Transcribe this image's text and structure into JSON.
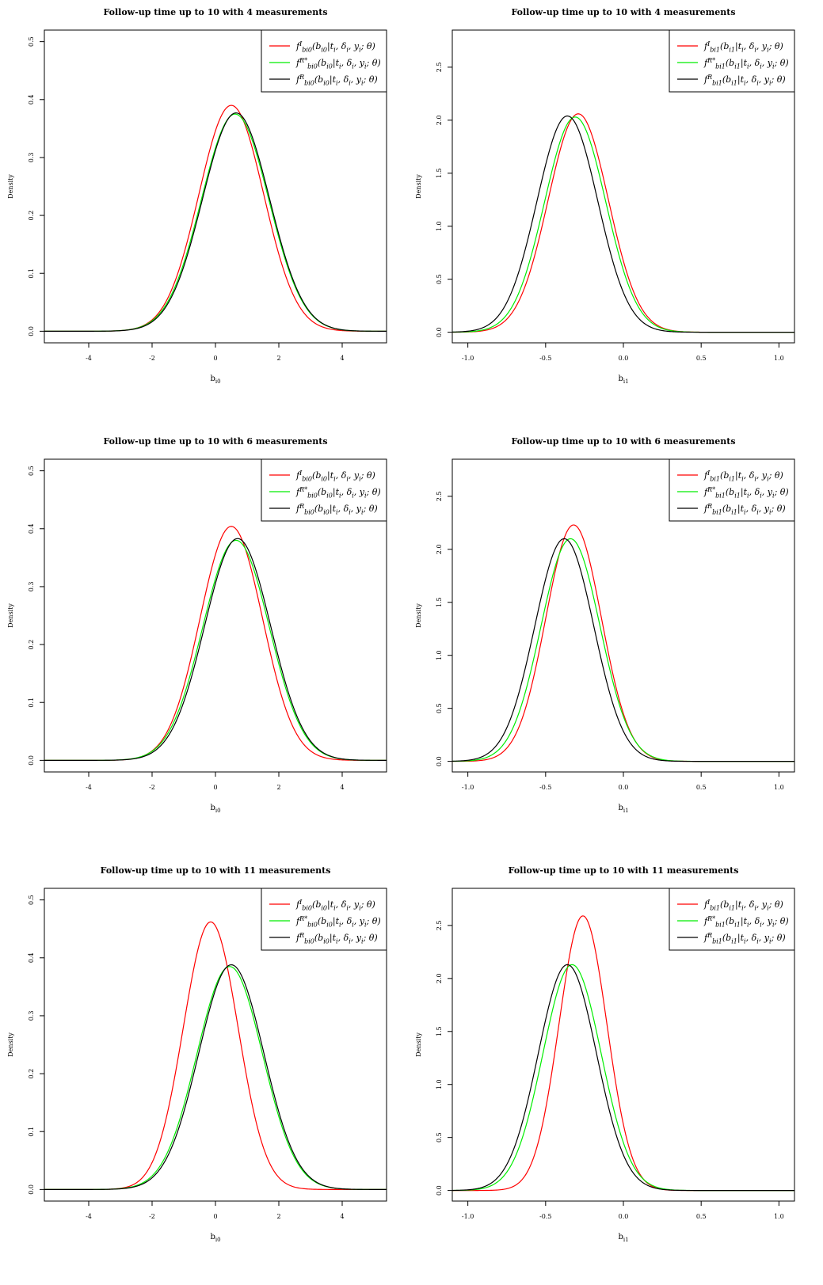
{
  "figure": {
    "ylabel": "Density",
    "legend_labels": [
      "f^I_{b_i0}(b_i0|t_i, δ_i, y_i; θ)",
      "f^R*_{b_i0}(b_i0|t_i, δ_i, y_i; θ)",
      "f^R_{b_i0}(b_i0|t_i, δ_i, y_i; θ)",
      "f^I_{b_i1}(b_i1|t_i, δ_i, y_i; θ)",
      "f^R*_{b_i1}(b_i1|t_i, δ_i, y_i; θ)",
      "f^R_{b_i1}(b_i1|t_i, δ_i, y_i; θ)"
    ]
  },
  "chart_data": [
    {
      "type": "line",
      "title": "Follow-up time up to 10 with 4 measurements",
      "xlabel": "b_i0",
      "ylabel": "Density",
      "xlim": [
        -5.4,
        5.4
      ],
      "ylim": [
        -0.02,
        0.52
      ],
      "xticks": [
        -4,
        -2,
        0,
        2,
        4
      ],
      "yticks": [
        0.0,
        0.1,
        0.2,
        0.3,
        0.4,
        0.5
      ],
      "xtick_labels": [
        "-4",
        "-2",
        "0",
        "2",
        "4"
      ],
      "ytick_labels": [
        "0.0",
        "0.1",
        "0.2",
        "0.3",
        "0.4",
        "0.5"
      ],
      "legend": "top-right",
      "grid": false,
      "series": [
        {
          "label_index": 0,
          "color": "#ff0000",
          "mean": 0.5,
          "peak": 0.39
        },
        {
          "label_index": 1,
          "color": "#00ee00",
          "mean": 0.62,
          "peak": 0.375
        },
        {
          "label_index": 2,
          "color": "#000000",
          "mean": 0.65,
          "peak": 0.377
        }
      ]
    },
    {
      "type": "line",
      "title": "Follow-up time up to 10 with 4 measurements",
      "xlabel": "b_i1",
      "ylabel": "Density",
      "xlim": [
        -1.1,
        1.1
      ],
      "ylim": [
        -0.1,
        2.85
      ],
      "xticks": [
        -1.0,
        -0.5,
        0.0,
        0.5,
        1.0
      ],
      "yticks": [
        0.0,
        0.5,
        1.0,
        1.5,
        2.0,
        2.5
      ],
      "xtick_labels": [
        "-1.0",
        "-0.5",
        "0.0",
        "0.5",
        "1.0"
      ],
      "ytick_labels": [
        "0.0",
        "0.5",
        "1.0",
        "1.5",
        "2.0",
        "2.5"
      ],
      "legend": "top-right",
      "grid": false,
      "series": [
        {
          "label_index": 3,
          "color": "#ff0000",
          "mean": -0.29,
          "peak": 2.06
        },
        {
          "label_index": 4,
          "color": "#00ee00",
          "mean": -0.31,
          "peak": 2.03
        },
        {
          "label_index": 5,
          "color": "#000000",
          "mean": -0.36,
          "peak": 2.04
        }
      ]
    },
    {
      "type": "line",
      "title": "Follow-up time up to 10 with 6 measurements",
      "xlabel": "b_i0",
      "ylabel": "Density",
      "xlim": [
        -5.4,
        5.4
      ],
      "ylim": [
        -0.02,
        0.52
      ],
      "xticks": [
        -4,
        -2,
        0,
        2,
        4
      ],
      "yticks": [
        0.0,
        0.1,
        0.2,
        0.3,
        0.4,
        0.5
      ],
      "xtick_labels": [
        "-4",
        "-2",
        "0",
        "2",
        "4"
      ],
      "ytick_labels": [
        "0.0",
        "0.1",
        "0.2",
        "0.3",
        "0.4",
        "0.5"
      ],
      "legend": "top-right",
      "grid": false,
      "series": [
        {
          "label_index": 0,
          "color": "#ff0000",
          "mean": 0.5,
          "peak": 0.404
        },
        {
          "label_index": 1,
          "color": "#00ee00",
          "mean": 0.65,
          "peak": 0.38
        },
        {
          "label_index": 2,
          "color": "#000000",
          "mean": 0.7,
          "peak": 0.383
        }
      ]
    },
    {
      "type": "line",
      "title": "Follow-up time up to 10 with 6 measurements",
      "xlabel": "b_i1",
      "ylabel": "Density",
      "xlim": [
        -1.1,
        1.1
      ],
      "ylim": [
        -0.1,
        2.85
      ],
      "xticks": [
        -1.0,
        -0.5,
        0.0,
        0.5,
        1.0
      ],
      "yticks": [
        0.0,
        0.5,
        1.0,
        1.5,
        2.0,
        2.5
      ],
      "xtick_labels": [
        "-1.0",
        "-0.5",
        "0.0",
        "0.5",
        "1.0"
      ],
      "ytick_labels": [
        "0.0",
        "0.5",
        "1.0",
        "1.5",
        "2.0",
        "2.5"
      ],
      "legend": "top-right",
      "grid": false,
      "series": [
        {
          "label_index": 3,
          "color": "#ff0000",
          "mean": -0.32,
          "peak": 2.23
        },
        {
          "label_index": 4,
          "color": "#00ee00",
          "mean": -0.34,
          "peak": 2.1
        },
        {
          "label_index": 5,
          "color": "#000000",
          "mean": -0.38,
          "peak": 2.1
        }
      ]
    },
    {
      "type": "line",
      "title": "Follow-up time up to 10 with 11 measurements",
      "xlabel": "b_i0",
      "ylabel": "Density",
      "xlim": [
        -5.4,
        5.4
      ],
      "ylim": [
        -0.02,
        0.52
      ],
      "xticks": [
        -4,
        -2,
        0,
        2,
        4
      ],
      "yticks": [
        0.0,
        0.1,
        0.2,
        0.3,
        0.4,
        0.5
      ],
      "xtick_labels": [
        "-4",
        "-2",
        "0",
        "2",
        "4"
      ],
      "ytick_labels": [
        "0.0",
        "0.1",
        "0.2",
        "0.3",
        "0.4",
        "0.5"
      ],
      "legend": "top-right",
      "grid": false,
      "series": [
        {
          "label_index": 0,
          "color": "#ff0000",
          "mean": -0.15,
          "peak": 0.462
        },
        {
          "label_index": 1,
          "color": "#00ee00",
          "mean": 0.45,
          "peak": 0.385
        },
        {
          "label_index": 2,
          "color": "#000000",
          "mean": 0.5,
          "peak": 0.388
        }
      ]
    },
    {
      "type": "line",
      "title": "Follow-up time up to 10 with 11 measurements",
      "xlabel": "b_i1",
      "ylabel": "Density",
      "xlim": [
        -1.1,
        1.1
      ],
      "ylim": [
        -0.1,
        2.85
      ],
      "xticks": [
        -1.0,
        -0.5,
        0.0,
        0.5,
        1.0
      ],
      "yticks": [
        0.0,
        0.5,
        1.0,
        1.5,
        2.0,
        2.5
      ],
      "xtick_labels": [
        "-1.0",
        "-0.5",
        "0.0",
        "0.5",
        "1.0"
      ],
      "ytick_labels": [
        "0.0",
        "0.5",
        "1.0",
        "1.5",
        "2.0",
        "2.5"
      ],
      "legend": "top-right",
      "grid": false,
      "series": [
        {
          "label_index": 3,
          "color": "#ff0000",
          "mean": -0.26,
          "peak": 2.59
        },
        {
          "label_index": 4,
          "color": "#00ee00",
          "mean": -0.33,
          "peak": 2.13
        },
        {
          "label_index": 5,
          "color": "#000000",
          "mean": -0.36,
          "peak": 2.13
        }
      ]
    }
  ]
}
